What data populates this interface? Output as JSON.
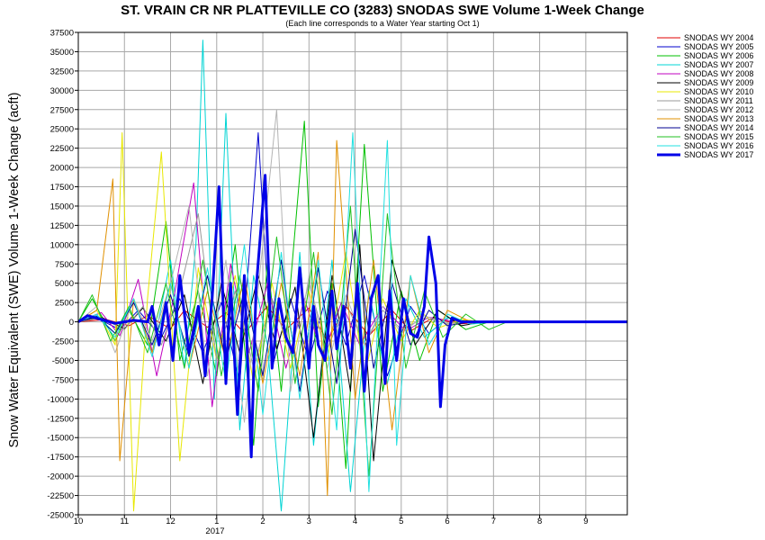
{
  "chart_data": {
    "type": "line",
    "title": "ST. VRAIN CR NR PLATTEVILLE CO (3283) SNODAS SWE Volume 1-Week Change",
    "subtitle": "(Each line corresponds to a Water Year starting Oct 1)",
    "ylabel": "Snow Water Equivalent (SWE) Volume 1-Week Change (acft)",
    "xlabel": "",
    "year_label": "2017",
    "ylim": [
      -25000,
      37500
    ],
    "y_ticks": [
      37500,
      35000,
      32500,
      30000,
      27500,
      25000,
      22500,
      20000,
      17500,
      15000,
      12500,
      10000,
      7500,
      5000,
      2500,
      0,
      -2500,
      -5000,
      -7500,
      -10000,
      -12500,
      -15000,
      -17500,
      -20000,
      -22500,
      -25000
    ],
    "xlim": [
      10,
      21.9
    ],
    "x_ticks": [
      {
        "value": 10,
        "label": "10"
      },
      {
        "value": 11,
        "label": "11"
      },
      {
        "value": 12,
        "label": "12"
      },
      {
        "value": 13,
        "label": "1"
      },
      {
        "value": 14,
        "label": "2"
      },
      {
        "value": 15,
        "label": "3"
      },
      {
        "value": 16,
        "label": "4"
      },
      {
        "value": 17,
        "label": "5"
      },
      {
        "value": 18,
        "label": "6"
      },
      {
        "value": 19,
        "label": "7"
      },
      {
        "value": 20,
        "label": "8"
      },
      {
        "value": 21,
        "label": "9"
      }
    ],
    "grid": true,
    "legend_position": "right",
    "series": [
      {
        "name": "SNODAS WY 2004",
        "color": "#e00000",
        "width": 1,
        "x": [
          10.0,
          10.6,
          11.1,
          11.5,
          12.0,
          12.3,
          12.8,
          13.2,
          13.6,
          14.1,
          14.5,
          15.0,
          15.4,
          15.8,
          16.3,
          16.8,
          17.2,
          17.7,
          18.2,
          18.8
        ],
        "y": [
          0,
          300,
          -500,
          800,
          -900,
          1500,
          -700,
          1200,
          -1500,
          2000,
          -1000,
          1800,
          -2500,
          2000,
          -1800,
          1500,
          -1200,
          600,
          -300,
          0
        ]
      },
      {
        "name": "SNODAS WY 2005",
        "color": "#0000cc",
        "width": 1,
        "x": [
          10.0,
          10.4,
          10.9,
          11.3,
          11.8,
          12.2,
          12.7,
          13.1,
          13.5,
          13.9,
          14.2,
          14.6,
          15.0,
          15.4,
          15.8,
          16.2,
          16.7,
          17.2,
          17.6,
          18.0,
          18.6
        ],
        "y": [
          0,
          500,
          -1000,
          1500,
          -2000,
          3000,
          -4000,
          2500,
          -8000,
          24500,
          -6000,
          3000,
          -5000,
          4000,
          -3000,
          6000,
          -7000,
          2000,
          -1500,
          500,
          0
        ]
      },
      {
        "name": "SNODAS WY 2006",
        "color": "#00c000",
        "width": 1,
        "x": [
          10.0,
          10.3,
          10.8,
          11.1,
          11.5,
          11.9,
          12.2,
          12.6,
          13.0,
          13.4,
          13.8,
          14.1,
          14.4,
          14.9,
          15.2,
          15.5,
          15.8,
          16.2,
          16.6,
          17.0,
          17.4,
          17.8,
          18.4,
          18.9
        ],
        "y": [
          0,
          3000,
          -2500,
          1500,
          -3000,
          13000,
          -5000,
          4000,
          -7000,
          10000,
          -16000,
          8000,
          -9000,
          26000,
          -11000,
          5000,
          -19000,
          23000,
          -9000,
          4000,
          -5000,
          1500,
          -1000,
          0
        ]
      },
      {
        "name": "SNODAS WY 2007",
        "color": "#00d4d4",
        "width": 1,
        "x": [
          10.0,
          10.4,
          10.8,
          11.2,
          11.6,
          12.0,
          12.3,
          12.55,
          12.7,
          12.95,
          13.2,
          13.5,
          13.8,
          14.1,
          14.4,
          14.8,
          15.1,
          15.5,
          15.9,
          16.3,
          16.7,
          17.1,
          17.5,
          18.0,
          18.5
        ],
        "y": [
          0,
          800,
          -1500,
          3000,
          -4000,
          8000,
          -6000,
          10000,
          36500,
          -10000,
          27000,
          -14000,
          6000,
          -3000,
          -24500,
          9000,
          -16000,
          8000,
          -22000,
          4000,
          -8000,
          3000,
          -2000,
          500,
          0
        ]
      },
      {
        "name": "SNODAS WY 2008",
        "color": "#c000c0",
        "width": 1,
        "x": [
          10.0,
          10.5,
          10.9,
          11.3,
          11.7,
          12.1,
          12.5,
          12.9,
          13.3,
          13.7,
          14.1,
          14.5,
          14.9,
          15.3,
          15.7,
          16.1,
          16.6,
          17.1,
          17.6,
          18.2
        ],
        "y": [
          0,
          1200,
          -1800,
          5500,
          -7000,
          4000,
          18000,
          -11000,
          7500,
          -4000,
          5000,
          -6000,
          3000,
          -4500,
          2500,
          -3000,
          2000,
          -1200,
          600,
          0
        ]
      },
      {
        "name": "SNODAS WY 2009",
        "color": "#000000",
        "width": 1,
        "x": [
          10.0,
          10.5,
          11.0,
          11.4,
          11.9,
          12.3,
          12.7,
          13.1,
          13.5,
          13.9,
          14.3,
          14.7,
          15.1,
          15.5,
          15.9,
          16.1,
          16.4,
          16.8,
          17.3,
          17.8,
          18.3,
          18.8
        ],
        "y": [
          0,
          600,
          -900,
          1800,
          -2500,
          3500,
          -8000,
          5000,
          -4000,
          6000,
          -3500,
          4500,
          -15000,
          6000,
          -9000,
          10000,
          -18000,
          8000,
          -3000,
          1500,
          -500,
          0
        ]
      },
      {
        "name": "SNODAS WY 2010",
        "color": "#e8e800",
        "width": 1,
        "x": [
          10.0,
          10.4,
          10.8,
          10.95,
          11.2,
          11.5,
          11.8,
          12.2,
          12.6,
          13.0,
          13.4,
          13.8,
          14.2,
          14.6,
          15.0,
          15.4,
          15.8,
          16.2,
          16.6,
          17.0,
          17.4,
          17.8,
          18.3,
          18.8
        ],
        "y": [
          0,
          1500,
          -3000,
          24500,
          -24500,
          3000,
          22000,
          -18000,
          7000,
          -5000,
          6000,
          -8000,
          5000,
          -6000,
          4000,
          -5000,
          9000,
          -7000,
          3000,
          -2500,
          1500,
          -800,
          300,
          0
        ]
      },
      {
        "name": "SNODAS WY 2011",
        "color": "#999999",
        "width": 1,
        "x": [
          10.0,
          10.5,
          11.0,
          11.4,
          11.8,
          12.2,
          12.6,
          13.0,
          13.4,
          13.8,
          14.2,
          14.6,
          15.0,
          15.4,
          15.8,
          16.2,
          16.6,
          17.0,
          17.5,
          18.0,
          18.6
        ],
        "y": [
          0,
          500,
          -1000,
          2000,
          -3000,
          4000,
          14000,
          -5000,
          4000,
          -6000,
          3000,
          -4000,
          5000,
          -3500,
          2500,
          -3000,
          1500,
          -1000,
          500,
          -200,
          0
        ]
      },
      {
        "name": "SNODAS WY 2012",
        "color": "#b4b4b4",
        "width": 1,
        "x": [
          10.0,
          10.4,
          10.8,
          11.2,
          11.6,
          12.0,
          12.4,
          12.8,
          13.2,
          13.6,
          14.0,
          14.3,
          14.6,
          15.0,
          15.4,
          15.8,
          16.2,
          16.6,
          17.0,
          17.5,
          18.0,
          18.5
        ],
        "y": [
          0,
          2000,
          -4000,
          3000,
          -2500,
          5000,
          15000,
          -7000,
          8000,
          -13000,
          10000,
          27500,
          -9000,
          6000,
          -6000,
          3500,
          -3000,
          2000,
          -1500,
          800,
          -300,
          0
        ]
      },
      {
        "name": "SNODAS WY 2013",
        "color": "#e09000",
        "width": 1,
        "x": [
          10.0,
          10.4,
          10.75,
          10.9,
          11.2,
          11.6,
          12.0,
          12.4,
          12.8,
          13.2,
          13.6,
          14.0,
          14.4,
          14.8,
          15.2,
          15.4,
          15.6,
          16.0,
          16.4,
          16.8,
          17.2,
          17.6,
          18.0,
          18.5
        ],
        "y": [
          0,
          1500,
          18500,
          -18000,
          3000,
          -4000,
          5000,
          -6000,
          4000,
          -5000,
          6000,
          -8000,
          5000,
          -7000,
          9000,
          -22500,
          23500,
          -10000,
          8000,
          -14000,
          6000,
          -4000,
          1500,
          0
        ]
      },
      {
        "name": "SNODAS WY 2014",
        "color": "#000090",
        "width": 1,
        "x": [
          10.0,
          10.4,
          10.8,
          11.2,
          11.6,
          12.0,
          12.4,
          12.8,
          13.2,
          13.6,
          14.0,
          14.4,
          14.8,
          15.2,
          15.6,
          16.0,
          16.4,
          16.8,
          17.2,
          17.6,
          18.0,
          18.5
        ],
        "y": [
          0,
          700,
          -1500,
          2500,
          -3000,
          3500,
          -4500,
          6000,
          -5000,
          4000,
          -7000,
          8000,
          -9000,
          7000,
          -8000,
          12000,
          -6000,
          5000,
          -3000,
          1500,
          -500,
          0
        ]
      },
      {
        "name": "SNODAS WY 2015",
        "color": "#20c020",
        "width": 1,
        "x": [
          10.0,
          10.3,
          10.7,
          11.1,
          11.5,
          11.9,
          12.3,
          12.7,
          13.1,
          13.5,
          13.9,
          14.3,
          14.7,
          15.1,
          15.5,
          15.9,
          16.3,
          16.7,
          17.1,
          17.5,
          17.9,
          18.4,
          18.9,
          19.3
        ],
        "y": [
          0,
          3500,
          -2500,
          2000,
          -4000,
          5000,
          -6000,
          8000,
          -7000,
          6000,
          -9000,
          11000,
          -8000,
          9000,
          -12000,
          15000,
          -20000,
          14000,
          -6000,
          4000,
          -2000,
          1000,
          -1000,
          0
        ]
      },
      {
        "name": "SNODAS WY 2016",
        "color": "#20e0e0",
        "width": 1,
        "x": [
          10.0,
          10.4,
          10.8,
          11.2,
          11.6,
          12.0,
          12.4,
          12.8,
          13.2,
          13.6,
          14.0,
          14.4,
          14.8,
          15.2,
          15.6,
          15.95,
          16.3,
          16.7,
          16.9,
          17.2,
          17.6,
          18.0,
          18.5,
          19.0
        ],
        "y": [
          0,
          1000,
          -2000,
          3000,
          -4500,
          5000,
          -6000,
          7000,
          -8000,
          10000,
          -12000,
          9000,
          -10000,
          8000,
          -14000,
          24500,
          -22000,
          23500,
          -16000,
          6000,
          -3000,
          1000,
          -300,
          0
        ]
      },
      {
        "name": "SNODAS WY 2017",
        "color": "#0000e8",
        "width": 3,
        "x": [
          10.0,
          10.2,
          10.5,
          10.8,
          11.2,
          11.5,
          11.6,
          11.75,
          11.9,
          12.05,
          12.2,
          12.4,
          12.6,
          12.75,
          12.9,
          13.05,
          13.2,
          13.3,
          13.45,
          13.6,
          13.75,
          13.85,
          14.05,
          14.2,
          14.35,
          14.5,
          14.65,
          14.8,
          15.0,
          15.1,
          15.2,
          15.35,
          15.5,
          15.6,
          15.75,
          15.9,
          16.05,
          16.2,
          16.35,
          16.5,
          16.65,
          16.75,
          16.9,
          17.05,
          17.2,
          17.35,
          17.5,
          17.6,
          17.75,
          17.85,
          17.95,
          18.1,
          18.3,
          18.6,
          19.0,
          20.0,
          21.0,
          21.9
        ],
        "y": [
          0,
          800,
          300,
          -200,
          200,
          0,
          2000,
          -3000,
          2500,
          -5000,
          6000,
          -4000,
          2000,
          -7000,
          3000,
          17500,
          -8000,
          5000,
          -12000,
          6000,
          -17500,
          4000,
          19000,
          -6000,
          3000,
          -2000,
          -4000,
          7000,
          -6000,
          2000,
          -3000,
          -5000,
          4000,
          -3500,
          2000,
          -6000,
          5000,
          -9000,
          3000,
          6000,
          -8000,
          4000,
          -5000,
          3000,
          -1500,
          -2000,
          2000,
          11000,
          5000,
          -11000,
          -3000,
          500,
          0,
          0,
          0,
          0,
          0,
          0
        ]
      }
    ]
  }
}
